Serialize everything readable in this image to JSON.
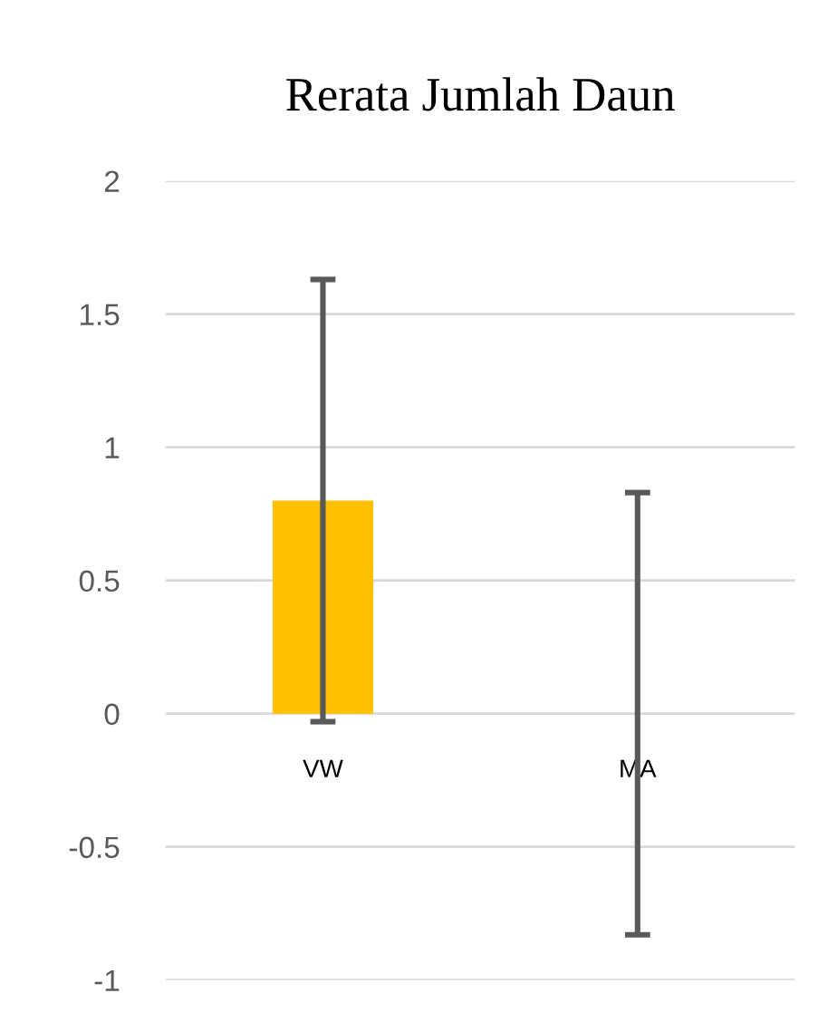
{
  "chart_data": {
    "type": "bar",
    "title": "Rerata Jumlah Daun",
    "categories": [
      "VW",
      "MA"
    ],
    "values": [
      0.8,
      0
    ],
    "errors": [
      0.83,
      0.83
    ],
    "color": "#ffc000",
    "ylim": [
      -1,
      2
    ],
    "yticks": [
      -1,
      -0.5,
      0,
      0.5,
      1,
      1.5,
      2
    ],
    "grid": "y"
  }
}
